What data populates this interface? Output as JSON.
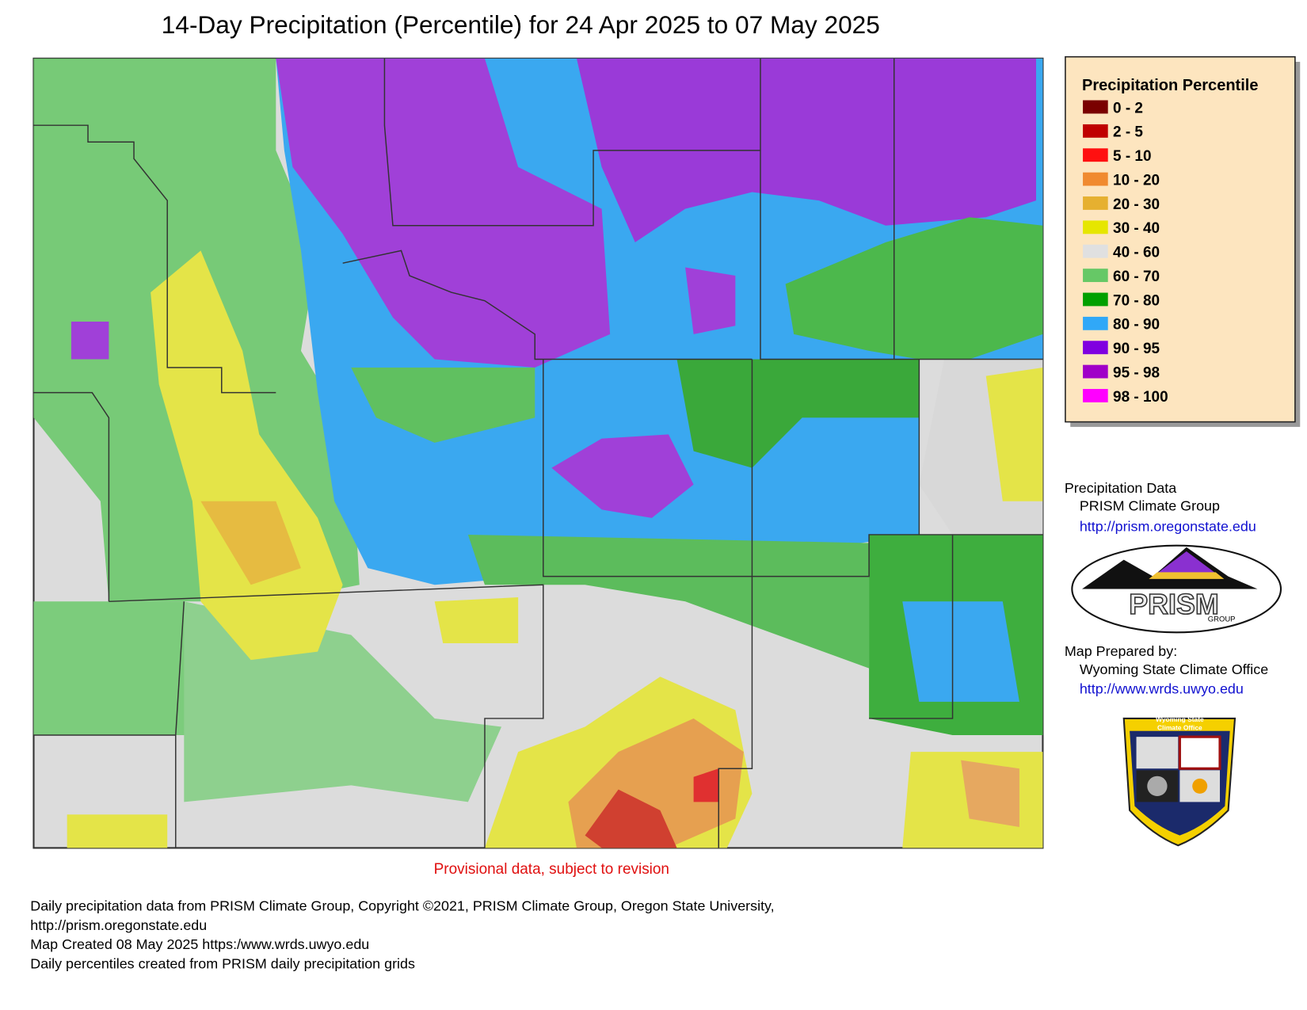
{
  "title": "14-Day Precipitation (Percentile) for 24 Apr 2025 to 07 May 2025",
  "legend": {
    "title": "Precipitation Percentile",
    "items": [
      {
        "label": "0 - 2",
        "color": "#7a0000"
      },
      {
        "label": "2 - 5",
        "color": "#c00000"
      },
      {
        "label": "5 - 10",
        "color": "#ff1010"
      },
      {
        "label": "10 - 20",
        "color": "#f08a30"
      },
      {
        "label": "20 - 30",
        "color": "#e6b030"
      },
      {
        "label": "30 - 40",
        "color": "#e6e600"
      },
      {
        "label": "40 - 60",
        "color": "#e0e0e0"
      },
      {
        "label": "60 - 70",
        "color": "#66c866"
      },
      {
        "label": "70 - 80",
        "color": "#00a000"
      },
      {
        "label": "80 - 90",
        "color": "#30a8f8"
      },
      {
        "label": "90 - 95",
        "color": "#8000e0"
      },
      {
        "label": "95 - 98",
        "color": "#a000c8"
      },
      {
        "label": "98 - 100",
        "color": "#ff00ff"
      }
    ]
  },
  "credits": {
    "data_heading": "Precipitation Data",
    "data_source": "PRISM Climate Group",
    "data_url": "http://prism.oregonstate.edu",
    "prepared_heading": "Map Prepared by:",
    "prepared_by": "Wyoming State Climate Office",
    "prepared_url": "http://www.wrds.uwyo.edu"
  },
  "logos": {
    "prism_name": "PRISM",
    "prism_sub": "GROUP",
    "wsco_line1": "Wyoming State",
    "wsco_line2": "Climate Office"
  },
  "provisional": "Provisional data, subject to revision",
  "footer": [
    "Daily precipitation data from PRISM Climate Group, Copyright ©2021, PRISM Climate Group, Oregon State University,",
    "http://prism.oregonstate.edu",
    "Map Created 08 May 2025 https:/www.wrds.uwyo.edu",
    "Daily percentiles created from PRISM daily precipitation grids"
  ]
}
